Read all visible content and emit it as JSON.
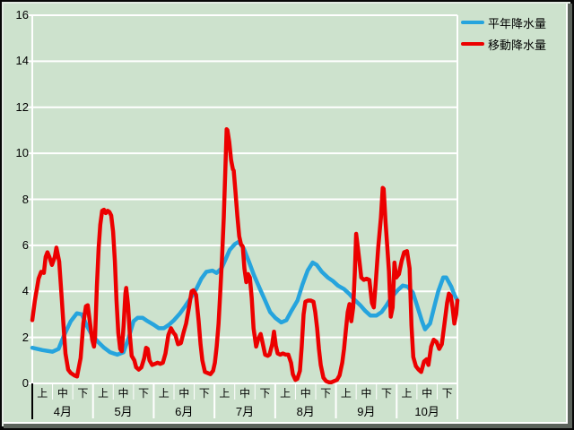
{
  "window": {
    "kind": "chart-panel"
  },
  "colors": {
    "background": "#cde2cd",
    "gridline": "#ffffff",
    "axis_label": "#000000",
    "series_normal": "#26a4dd",
    "series_moving": "#ec0000",
    "label_area_left_edge": "#000000"
  },
  "chart_data": {
    "type": "line",
    "title": "",
    "xlabel": "",
    "ylabel": "",
    "x_axis": {
      "months": [
        "4月",
        "5月",
        "6月",
        "7月",
        "8月",
        "9月",
        "10月"
      ],
      "periods_per_month": [
        "上",
        "中",
        "下"
      ],
      "units_note": "x expressed in 10-day periods, 0 = start of 4月上, 21 = end of 10月下"
    },
    "y_axis": {
      "min": 0,
      "max": 16,
      "step": 2,
      "tick_labels": [
        "0",
        "2",
        "4",
        "6",
        "8",
        "10",
        "12",
        "14",
        "16"
      ]
    },
    "legend_position": "top-right",
    "grid": true,
    "series": [
      {
        "name": "平年降水量",
        "color": "#26a4dd",
        "points": [
          [
            0,
            1.55
          ],
          [
            0.5,
            1.45
          ],
          [
            1,
            1.38
          ],
          [
            1.3,
            1.5
          ],
          [
            1.55,
            2.05
          ],
          [
            1.9,
            2.7
          ],
          [
            2.2,
            3.05
          ],
          [
            2.45,
            3.0
          ],
          [
            2.7,
            2.5
          ],
          [
            2.95,
            2.1
          ],
          [
            3.25,
            1.8
          ],
          [
            3.55,
            1.55
          ],
          [
            3.85,
            1.35
          ],
          [
            4.2,
            1.25
          ],
          [
            4.5,
            1.35
          ],
          [
            4.75,
            1.95
          ],
          [
            5,
            2.7
          ],
          [
            5.2,
            2.85
          ],
          [
            5.45,
            2.85
          ],
          [
            5.7,
            2.7
          ],
          [
            6,
            2.55
          ],
          [
            6.25,
            2.4
          ],
          [
            6.5,
            2.4
          ],
          [
            6.75,
            2.55
          ],
          [
            7,
            2.75
          ],
          [
            7.3,
            3.05
          ],
          [
            7.55,
            3.35
          ],
          [
            7.85,
            3.75
          ],
          [
            8.1,
            4.1
          ],
          [
            8.35,
            4.55
          ],
          [
            8.6,
            4.85
          ],
          [
            8.9,
            4.9
          ],
          [
            9.1,
            4.8
          ],
          [
            9.35,
            5.0
          ],
          [
            9.55,
            5.4
          ],
          [
            9.75,
            5.8
          ],
          [
            10,
            6.05
          ],
          [
            10.2,
            6.15
          ],
          [
            10.45,
            5.85
          ],
          [
            10.7,
            5.3
          ],
          [
            10.95,
            4.7
          ],
          [
            11.25,
            4.1
          ],
          [
            11.5,
            3.6
          ],
          [
            11.75,
            3.1
          ],
          [
            12,
            2.85
          ],
          [
            12.3,
            2.65
          ],
          [
            12.55,
            2.75
          ],
          [
            12.8,
            3.15
          ],
          [
            13.1,
            3.6
          ],
          [
            13.35,
            4.3
          ],
          [
            13.6,
            4.9
          ],
          [
            13.85,
            5.25
          ],
          [
            14.05,
            5.15
          ],
          [
            14.3,
            4.85
          ],
          [
            14.6,
            4.6
          ],
          [
            14.85,
            4.45
          ],
          [
            15.1,
            4.25
          ],
          [
            15.4,
            4.1
          ],
          [
            15.65,
            3.9
          ],
          [
            15.9,
            3.65
          ],
          [
            16.2,
            3.4
          ],
          [
            16.45,
            3.15
          ],
          [
            16.7,
            2.95
          ],
          [
            17,
            2.95
          ],
          [
            17.25,
            3.1
          ],
          [
            17.5,
            3.4
          ],
          [
            17.75,
            3.75
          ],
          [
            18.05,
            4.05
          ],
          [
            18.3,
            4.25
          ],
          [
            18.55,
            4.2
          ],
          [
            18.8,
            3.95
          ],
          [
            19,
            3.4
          ],
          [
            19.25,
            2.7
          ],
          [
            19.4,
            2.35
          ],
          [
            19.65,
            2.6
          ],
          [
            19.85,
            3.3
          ],
          [
            20.05,
            4.0
          ],
          [
            20.3,
            4.6
          ],
          [
            20.45,
            4.6
          ],
          [
            20.7,
            4.2
          ],
          [
            20.85,
            3.85
          ],
          [
            21,
            3.6
          ]
        ]
      },
      {
        "name": "移動降水量",
        "color": "#ec0000",
        "points": [
          [
            0,
            2.75
          ],
          [
            0.13,
            3.6
          ],
          [
            0.31,
            4.55
          ],
          [
            0.44,
            4.85
          ],
          [
            0.57,
            4.8
          ],
          [
            0.66,
            5.5
          ],
          [
            0.75,
            5.7
          ],
          [
            0.84,
            5.5
          ],
          [
            0.97,
            5.15
          ],
          [
            1.11,
            5.5
          ],
          [
            1.19,
            5.9
          ],
          [
            1.33,
            5.3
          ],
          [
            1.46,
            3.6
          ],
          [
            1.55,
            2.4
          ],
          [
            1.64,
            1.3
          ],
          [
            1.77,
            0.6
          ],
          [
            1.9,
            0.45
          ],
          [
            2.08,
            0.35
          ],
          [
            2.21,
            0.3
          ],
          [
            2.39,
            1.1
          ],
          [
            2.52,
            2.6
          ],
          [
            2.65,
            3.35
          ],
          [
            2.74,
            3.4
          ],
          [
            2.87,
            2.5
          ],
          [
            2.96,
            1.9
          ],
          [
            3.05,
            1.6
          ],
          [
            3.1,
            2.0
          ],
          [
            3.19,
            4.2
          ],
          [
            3.28,
            5.9
          ],
          [
            3.36,
            6.9
          ],
          [
            3.45,
            7.5
          ],
          [
            3.54,
            7.55
          ],
          [
            3.63,
            7.4
          ],
          [
            3.72,
            7.5
          ],
          [
            3.81,
            7.45
          ],
          [
            3.9,
            7.3
          ],
          [
            3.99,
            6.6
          ],
          [
            4.08,
            5.3
          ],
          [
            4.16,
            3.6
          ],
          [
            4.25,
            2.2
          ],
          [
            4.34,
            1.5
          ],
          [
            4.42,
            1.4
          ],
          [
            4.51,
            2.5
          ],
          [
            4.6,
            3.9
          ],
          [
            4.64,
            4.15
          ],
          [
            4.73,
            3.4
          ],
          [
            4.82,
            2.1
          ],
          [
            4.91,
            1.2
          ],
          [
            5.04,
            1.0
          ],
          [
            5.13,
            0.7
          ],
          [
            5.26,
            0.6
          ],
          [
            5.39,
            0.7
          ],
          [
            5.53,
            1.1
          ],
          [
            5.62,
            1.55
          ],
          [
            5.7,
            1.5
          ],
          [
            5.79,
            1.0
          ],
          [
            5.92,
            0.8
          ],
          [
            6.06,
            0.85
          ],
          [
            6.19,
            0.9
          ],
          [
            6.32,
            0.85
          ],
          [
            6.45,
            0.9
          ],
          [
            6.58,
            1.3
          ],
          [
            6.72,
            2.1
          ],
          [
            6.85,
            2.4
          ],
          [
            6.98,
            2.2
          ],
          [
            7.07,
            2.1
          ],
          [
            7.2,
            1.7
          ],
          [
            7.34,
            1.75
          ],
          [
            7.47,
            2.2
          ],
          [
            7.6,
            2.6
          ],
          [
            7.74,
            3.3
          ],
          [
            7.87,
            4.0
          ],
          [
            7.96,
            4.05
          ],
          [
            8.09,
            3.85
          ],
          [
            8.22,
            2.7
          ],
          [
            8.31,
            1.7
          ],
          [
            8.4,
            1.0
          ],
          [
            8.53,
            0.5
          ],
          [
            8.66,
            0.45
          ],
          [
            8.8,
            0.4
          ],
          [
            8.93,
            0.55
          ],
          [
            9.02,
            0.9
          ],
          [
            9.11,
            1.6
          ],
          [
            9.2,
            2.6
          ],
          [
            9.28,
            3.9
          ],
          [
            9.37,
            5.4
          ],
          [
            9.46,
            7.2
          ],
          [
            9.55,
            9.7
          ],
          [
            9.6,
            11.05
          ],
          [
            9.64,
            11.0
          ],
          [
            9.73,
            10.5
          ],
          [
            9.82,
            9.7
          ],
          [
            9.91,
            9.3
          ],
          [
            9.95,
            9.25
          ],
          [
            10.04,
            8.3
          ],
          [
            10.13,
            7.3
          ],
          [
            10.22,
            6.4
          ],
          [
            10.31,
            6.05
          ],
          [
            10.4,
            5.95
          ],
          [
            10.48,
            5.0
          ],
          [
            10.57,
            4.4
          ],
          [
            10.66,
            4.75
          ],
          [
            10.75,
            4.6
          ],
          [
            10.84,
            3.7
          ],
          [
            10.93,
            2.4
          ],
          [
            11.06,
            1.6
          ],
          [
            11.15,
            1.9
          ],
          [
            11.28,
            2.15
          ],
          [
            11.37,
            1.8
          ],
          [
            11.5,
            1.25
          ],
          [
            11.63,
            1.2
          ],
          [
            11.72,
            1.25
          ],
          [
            11.85,
            1.7
          ],
          [
            11.94,
            2.25
          ],
          [
            12.03,
            1.65
          ],
          [
            12.12,
            1.3
          ],
          [
            12.25,
            1.25
          ],
          [
            12.38,
            1.3
          ],
          [
            12.52,
            1.25
          ],
          [
            12.65,
            1.25
          ],
          [
            12.78,
            0.9
          ],
          [
            12.87,
            0.4
          ],
          [
            13,
            0.15
          ],
          [
            13.09,
            0.2
          ],
          [
            13.22,
            0.55
          ],
          [
            13.31,
            1.6
          ],
          [
            13.4,
            3.0
          ],
          [
            13.49,
            3.55
          ],
          [
            13.62,
            3.6
          ],
          [
            13.75,
            3.6
          ],
          [
            13.89,
            3.55
          ],
          [
            13.98,
            3.1
          ],
          [
            14.07,
            2.4
          ],
          [
            14.16,
            1.5
          ],
          [
            14.25,
            0.8
          ],
          [
            14.38,
            0.25
          ],
          [
            14.51,
            0.1
          ],
          [
            14.65,
            0.05
          ],
          [
            14.78,
            0.05
          ],
          [
            14.91,
            0.1
          ],
          [
            15.05,
            0.15
          ],
          [
            15.18,
            0.35
          ],
          [
            15.31,
            0.9
          ],
          [
            15.4,
            1.5
          ],
          [
            15.49,
            2.3
          ],
          [
            15.58,
            3.1
          ],
          [
            15.67,
            3.45
          ],
          [
            15.76,
            2.7
          ],
          [
            15.85,
            3.3
          ],
          [
            15.93,
            4.8
          ],
          [
            16,
            6.5
          ],
          [
            16.07,
            6.0
          ],
          [
            16.16,
            5.3
          ],
          [
            16.25,
            4.6
          ],
          [
            16.38,
            4.5
          ],
          [
            16.51,
            4.55
          ],
          [
            16.65,
            4.5
          ],
          [
            16.78,
            3.5
          ],
          [
            16.87,
            3.3
          ],
          [
            16.96,
            4.3
          ],
          [
            17.09,
            5.9
          ],
          [
            17.22,
            7.2
          ],
          [
            17.31,
            8.5
          ],
          [
            17.36,
            8.45
          ],
          [
            17.45,
            7.0
          ],
          [
            17.53,
            6.0
          ],
          [
            17.62,
            4.85
          ],
          [
            17.71,
            2.9
          ],
          [
            17.8,
            3.3
          ],
          [
            17.89,
            5.25
          ],
          [
            17.98,
            4.6
          ],
          [
            18.11,
            4.75
          ],
          [
            18.24,
            5.3
          ],
          [
            18.37,
            5.7
          ],
          [
            18.51,
            5.75
          ],
          [
            18.64,
            5.0
          ],
          [
            18.73,
            2.5
          ],
          [
            18.82,
            1.15
          ],
          [
            18.95,
            0.75
          ],
          [
            19.08,
            0.6
          ],
          [
            19.21,
            0.5
          ],
          [
            19.35,
            0.95
          ],
          [
            19.48,
            1.05
          ],
          [
            19.57,
            0.8
          ],
          [
            19.7,
            1.6
          ],
          [
            19.83,
            1.9
          ],
          [
            19.97,
            1.8
          ],
          [
            20.1,
            1.5
          ],
          [
            20.23,
            1.7
          ],
          [
            20.36,
            2.6
          ],
          [
            20.49,
            3.5
          ],
          [
            20.58,
            3.9
          ],
          [
            20.67,
            3.8
          ],
          [
            20.76,
            3.3
          ],
          [
            20.85,
            2.6
          ],
          [
            20.94,
            3.0
          ],
          [
            21,
            3.6
          ]
        ]
      }
    ]
  }
}
